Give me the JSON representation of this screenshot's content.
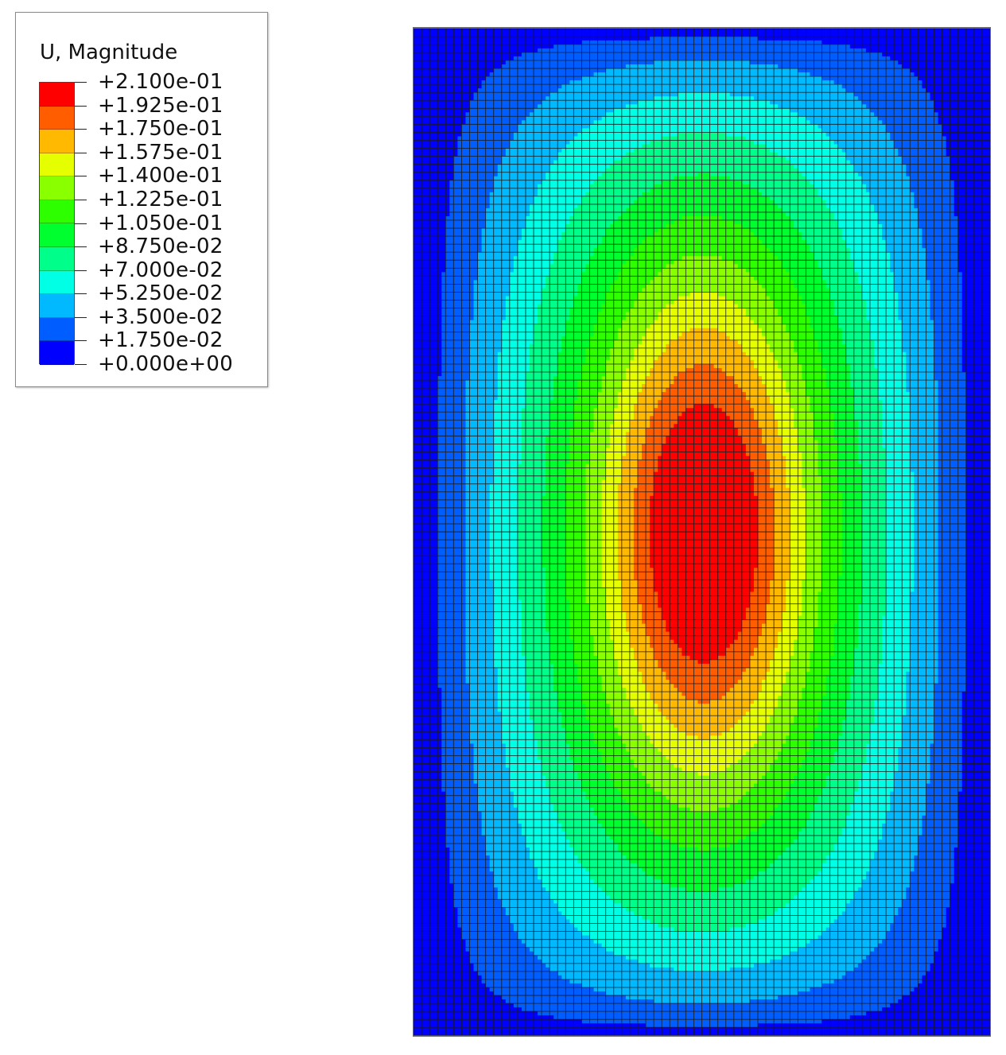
{
  "legend": {
    "title": "U, Magnitude",
    "labels": [
      "+2.100e-01",
      "+1.925e-01",
      "+1.750e-01",
      "+1.575e-01",
      "+1.400e-01",
      "+1.225e-01",
      "+1.050e-01",
      "+8.750e-02",
      "+7.000e-02",
      "+5.250e-02",
      "+3.500e-02",
      "+1.750e-02",
      "+0.000e+00"
    ],
    "colors": [
      "#ff0000",
      "#ff5d00",
      "#ffb900",
      "#e5ff00",
      "#8aff00",
      "#2eff00",
      "#00ff2e",
      "#00ff8a",
      "#00ffe5",
      "#00b9ff",
      "#005dff",
      "#0000ff"
    ]
  },
  "contour": {
    "field": "U, Magnitude",
    "levels": [
      0.0,
      0.0175,
      0.035,
      0.0525,
      0.07,
      0.0875,
      0.105,
      0.1225,
      0.14,
      0.1575,
      0.175,
      0.1925,
      0.21
    ],
    "mesh_columns": 72,
    "mesh_rows": 126,
    "mesh_line_color": "#1a1a1a"
  }
}
